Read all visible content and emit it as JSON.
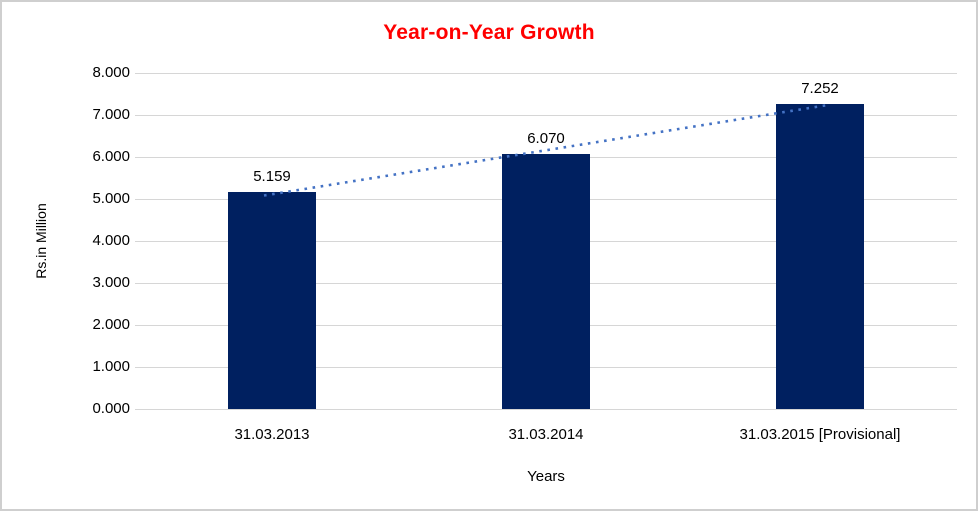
{
  "chart_data": {
    "type": "bar",
    "title": "Year-on-Year Growth",
    "xlabel": "Years",
    "ylabel": "Rs.in Million",
    "categories": [
      "31.03.2013",
      "31.03.2014",
      "31.03.2015 [Provisional]"
    ],
    "values": [
      5.159,
      6.07,
      7.252
    ],
    "value_labels": [
      "5.159",
      "6.070",
      "7.252"
    ],
    "ylim": [
      0,
      8
    ],
    "ytick_step": 1,
    "ytick_labels": [
      "8.000",
      "7.000",
      "6.000",
      "5.000",
      "4.000",
      "3.000",
      "2.000",
      "1.000",
      "0.000"
    ],
    "grid": true,
    "legend": "none",
    "trendline": {
      "type": "linear",
      "style": "dotted",
      "color": "#4472C4"
    },
    "colors": {
      "bar": "#002060",
      "title": "#FF0000",
      "text": "#000000",
      "gridline": "#D6D6D6",
      "frame_border": "#CFCFCF",
      "background": "#FFFFFF"
    }
  }
}
